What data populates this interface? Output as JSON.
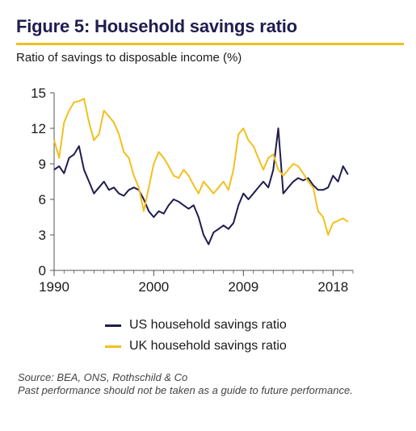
{
  "header": {
    "title": "Figure 5: Household savings ratio",
    "subtitle": "Ratio of savings to disposable income (%)"
  },
  "colors": {
    "title": "#1f1d4e",
    "accent": "#f2c01e",
    "us": "#1f1d4e",
    "uk": "#f2c01e",
    "axis": "#555555"
  },
  "footer": {
    "source": "Source: BEA, ONS, Rothschild & Co",
    "disclaimer": "Past performance should not be taken as a guide to future performance."
  },
  "chart_data": {
    "type": "line",
    "title": "Figure 5: Household savings ratio",
    "ylabel": "Ratio of savings to disposable income (%)",
    "xlim": [
      1990,
      2020
    ],
    "ylim": [
      0,
      15
    ],
    "yticks": [
      0,
      3,
      6,
      9,
      12,
      15
    ],
    "xticks": [
      1990,
      2000,
      2009,
      2018
    ],
    "grid": false,
    "legend_position": "bottom",
    "series": [
      {
        "name": "US household savings ratio",
        "color": "#1f1d4e",
        "x": [
          1990,
          1990.5,
          1991,
          1991.5,
          1992,
          1992.5,
          1993,
          1993.5,
          1994,
          1994.5,
          1995,
          1995.5,
          1996,
          1996.5,
          1997,
          1997.5,
          1998,
          1998.5,
          1999,
          1999.5,
          2000,
          2000.5,
          2001,
          2001.5,
          2002,
          2002.5,
          2003,
          2003.5,
          2004,
          2004.5,
          2005,
          2005.5,
          2006,
          2006.5,
          2007,
          2007.5,
          2008,
          2008.5,
          2009,
          2009.5,
          2010,
          2010.5,
          2011,
          2011.5,
          2012,
          2012.5,
          2013,
          2013.5,
          2014,
          2014.5,
          2015,
          2015.5,
          2016,
          2016.5,
          2017,
          2017.5,
          2018,
          2018.5,
          2019,
          2019.5
        ],
        "y": [
          8.5,
          8.8,
          8.2,
          9.5,
          9.8,
          10.5,
          8.5,
          7.5,
          6.5,
          7.0,
          7.5,
          6.8,
          7.0,
          6.5,
          6.3,
          6.8,
          7.0,
          6.8,
          6.0,
          5.0,
          4.5,
          5.0,
          4.8,
          5.5,
          6.0,
          5.8,
          5.5,
          5.2,
          5.5,
          4.5,
          3.0,
          2.2,
          3.2,
          3.5,
          3.8,
          3.5,
          4.0,
          5.5,
          6.5,
          6.0,
          6.5,
          7.0,
          7.5,
          7.0,
          8.5,
          12.0,
          6.5,
          7.0,
          7.5,
          7.8,
          7.6,
          7.8,
          7.2,
          6.8,
          6.8,
          7.0,
          8.0,
          7.5,
          8.8,
          8.1
        ]
      },
      {
        "name": "UK household savings ratio",
        "color": "#f2c01e",
        "x": [
          1990,
          1990.5,
          1991,
          1991.5,
          1992,
          1992.5,
          1993,
          1993.5,
          1994,
          1994.5,
          1995,
          1995.5,
          1996,
          1996.5,
          1997,
          1997.5,
          1998,
          1998.5,
          1999,
          1999.5,
          2000,
          2000.5,
          2001,
          2001.5,
          2002,
          2002.5,
          2003,
          2003.5,
          2004,
          2004.5,
          2005,
          2005.5,
          2006,
          2006.5,
          2007,
          2007.5,
          2008,
          2008.5,
          2009,
          2009.5,
          2010,
          2010.5,
          2011,
          2011.5,
          2012,
          2012.5,
          2013,
          2013.5,
          2014,
          2014.5,
          2015,
          2015.5,
          2016,
          2016.5,
          2017,
          2017.5,
          2018,
          2018.5,
          2019,
          2019.5
        ],
        "y": [
          11.0,
          9.5,
          12.5,
          13.5,
          14.2,
          14.3,
          14.5,
          12.5,
          11.0,
          11.5,
          13.5,
          13.0,
          12.5,
          11.5,
          10.0,
          9.5,
          8.0,
          7.0,
          5.0,
          7.0,
          9.0,
          10.0,
          9.5,
          8.8,
          8.0,
          7.8,
          8.5,
          8.0,
          7.2,
          6.5,
          7.5,
          7.0,
          6.5,
          7.0,
          7.5,
          6.8,
          8.5,
          11.5,
          12.0,
          11.0,
          10.5,
          9.5,
          8.5,
          9.5,
          9.8,
          8.5,
          8.0,
          8.5,
          9.0,
          8.8,
          8.2,
          7.5,
          7.0,
          5.0,
          4.5,
          3.0,
          4.0,
          4.2,
          4.4,
          4.1
        ]
      }
    ]
  }
}
